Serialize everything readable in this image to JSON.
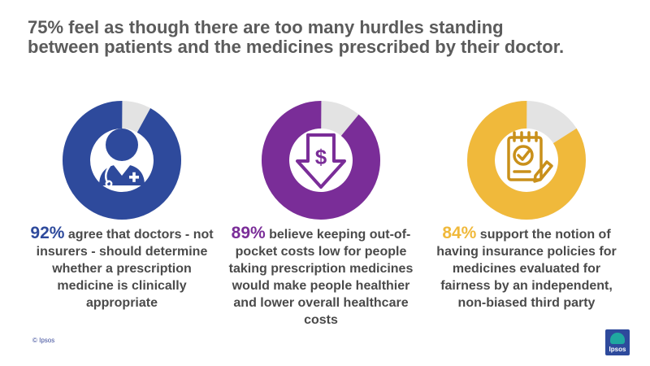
{
  "title": {
    "line1": "75% feel as though there are too many hurdles standing",
    "line2": "between patients and the medicines prescribed by their doctor."
  },
  "chart_data": {
    "type": "pie",
    "items": [
      {
        "value": 92,
        "percent_label": "92%",
        "text": " agree that doctors - not insurers - should determine whether a prescription medicine is clinically appropriate",
        "color": "#2e4a9c",
        "icon": "doctor-icon"
      },
      {
        "value": 89,
        "percent_label": "89%",
        "text": " believe keeping out-of-pocket costs low for people taking prescription medicines would make people healthier and lower overall healthcare costs",
        "color": "#7a2d98",
        "icon": "dollar-down-arrow-icon"
      },
      {
        "value": 84,
        "percent_label": "84%",
        "text": " support the notion of having insurance policies for medicines evaluated for fairness by an independent, non-biased third party",
        "color": "#f0b93b",
        "icon": "checklist-pencil-icon"
      }
    ],
    "remainder_color": "#e3e3e3"
  },
  "footer": {
    "copyright": "© Ipsos",
    "logo_text": "Ipsos"
  }
}
